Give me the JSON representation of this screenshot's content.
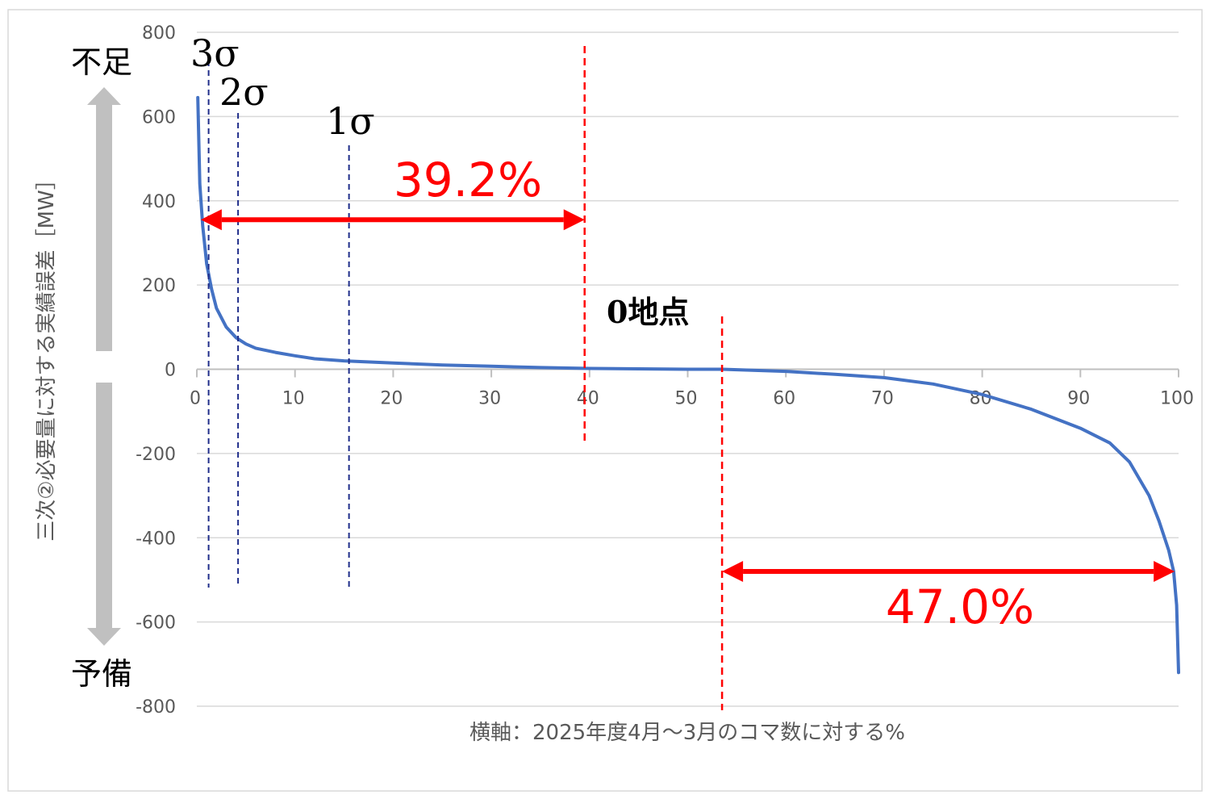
{
  "chart_data": {
    "type": "line",
    "xlabel": "横軸：2025年度4月～3月のコマ数に対する%",
    "ylabel": "三次②必要量に対する実績誤差［MW］",
    "xlim": [
      0,
      100
    ],
    "ylim": [
      -800,
      800
    ],
    "x_ticks": [
      "0",
      "10",
      "20",
      "30",
      "40",
      "50",
      "60",
      "70",
      "80",
      "90",
      "100"
    ],
    "y_ticks": [
      "800",
      "600",
      "400",
      "200",
      "0",
      "-200",
      "-400",
      "-600",
      "-800"
    ],
    "grid": true,
    "legend": "none",
    "series": [
      {
        "color": "#4472c4",
        "x": [
          0.1,
          0.3,
          0.6,
          1,
          1.5,
          2,
          3,
          4,
          5,
          6,
          8,
          10,
          12,
          15,
          20,
          25,
          30,
          35,
          40,
          45,
          50,
          53.5,
          60,
          65,
          70,
          75,
          80,
          85,
          90,
          93,
          95,
          97,
          98,
          99,
          99.5,
          99.8,
          100
        ],
        "y": [
          645,
          440,
          340,
          250,
          190,
          145,
          100,
          75,
          60,
          50,
          40,
          32,
          25,
          20,
          15,
          10,
          7,
          4,
          2,
          1,
          0,
          0,
          -5,
          -12,
          -20,
          -35,
          -60,
          -95,
          -140,
          -175,
          -220,
          -300,
          -360,
          -430,
          -480,
          -560,
          -720
        ]
      }
    ],
    "annotations": {
      "sigma_labels": [
        "3σ",
        "2σ",
        "1σ"
      ],
      "sigma_x": [
        1.2,
        4.2,
        15.5
      ],
      "zero_point_label": "0地点",
      "zero_point_x": 53.5,
      "red_line_x": 39.5,
      "arrow_left": {
        "label": "39.2%",
        "x_from": 0.4,
        "x_to": 39.5,
        "y": 355
      },
      "arrow_right": {
        "label": "47.0%",
        "x_from": 53.5,
        "x_to": 99.6,
        "y": -480
      },
      "shortage_label": "不足",
      "reserve_label": "予備"
    }
  }
}
